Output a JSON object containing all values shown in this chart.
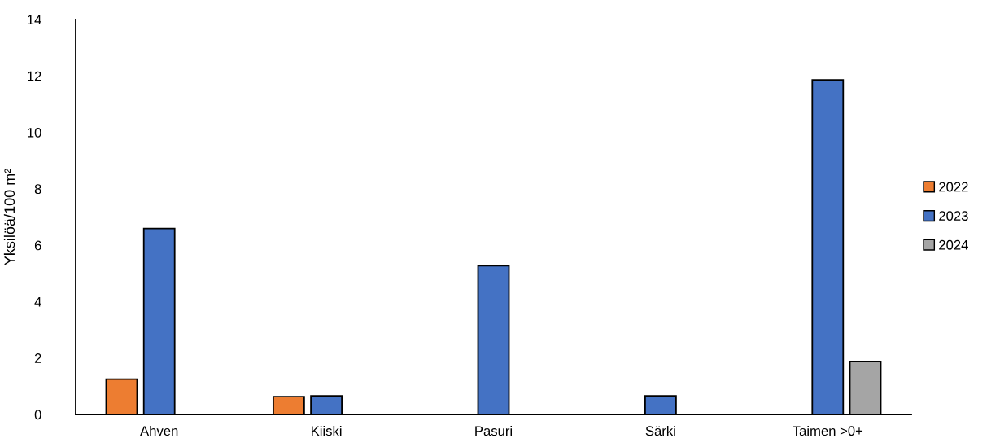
{
  "chart_data": {
    "type": "bar",
    "ylabel": "Yksilöä/100 m²",
    "categories": [
      "Ahven",
      "Kiiski",
      "Pasuri",
      "Särki",
      "Taimen >0+"
    ],
    "series": [
      {
        "name": "2022",
        "color": "#ed7d31",
        "values": [
          1.25,
          0.63,
          null,
          null,
          null
        ]
      },
      {
        "name": "2023",
        "color": "#4472c4",
        "values": [
          6.59,
          0.66,
          5.27,
          0.66,
          11.86
        ]
      },
      {
        "name": "2024",
        "color": "#a5a5a5",
        "values": [
          null,
          null,
          null,
          null,
          1.88
        ]
      }
    ],
    "ylim": [
      0,
      14
    ],
    "yticks": [
      0,
      2,
      4,
      6,
      8,
      10,
      12,
      14
    ],
    "grid": false,
    "legend": "right"
  }
}
